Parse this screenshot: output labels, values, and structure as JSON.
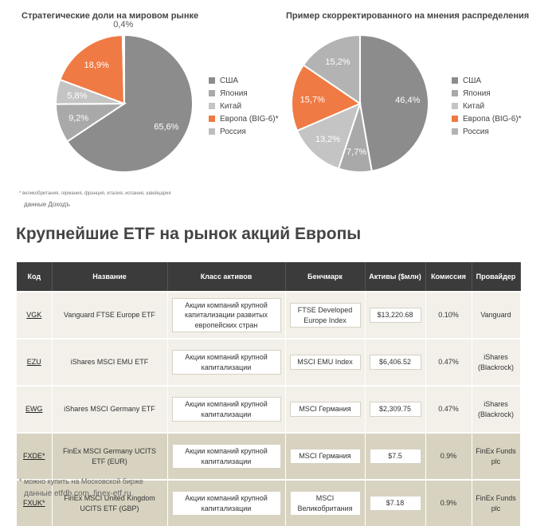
{
  "charts": [
    {
      "title": "Стратегические доли на мировом рынке",
      "slices": [
        {
          "name": "США",
          "label": "65,6%",
          "value": 65.6,
          "color": "#8c8c8c"
        },
        {
          "name": "Япония",
          "label": "9,2%",
          "value": 9.2,
          "color": "#a9a9a9"
        },
        {
          "name": "Китай",
          "label": "5,8%",
          "value": 5.8,
          "color": "#c4c4c4"
        },
        {
          "name": "Европа (BIG-6)*",
          "label": "18,9%",
          "value": 18.9,
          "color": "#f07a43"
        },
        {
          "name": "Россия",
          "label": "0,4%",
          "value": 0.4,
          "color": "#bdbdbd"
        }
      ]
    },
    {
      "title": "Пример скорректированного на мнения распределения",
      "slices": [
        {
          "name": "США",
          "label": "46,4%",
          "value": 46.4,
          "color": "#8c8c8c"
        },
        {
          "name": "Япония",
          "label": "7,7%",
          "value": 7.7,
          "color": "#a9a9a9"
        },
        {
          "name": "Китай",
          "label": "13,2%",
          "value": 13.2,
          "color": "#c4c4c4"
        },
        {
          "name": "Европа (BIG-6)*",
          "label": "15,7%",
          "value": 15.7,
          "color": "#f07a43"
        },
        {
          "name": "Россия",
          "label": "15,2%",
          "value": 15.2,
          "color": "#b3b3b3"
        }
      ]
    }
  ],
  "chart_data": [
    {
      "type": "pie",
      "title": "Стратегические доли на мировом рынке",
      "categories": [
        "США",
        "Япония",
        "Китай",
        "Европа (BIG-6)*",
        "Россия"
      ],
      "values": [
        65.6,
        9.2,
        5.8,
        18.9,
        0.4
      ],
      "legend": "right"
    },
    {
      "type": "pie",
      "title": "Пример скорректированного на мнения распределения",
      "categories": [
        "США",
        "Япония",
        "Китай",
        "Европа (BIG-6)*",
        "Россия"
      ],
      "values": [
        46.4,
        7.7,
        13.2,
        15.7,
        15.2
      ],
      "legend": "right"
    }
  ],
  "chart_footnote": "* великобритания, германия, франция, италия, испания, швейцария",
  "chart_source": "данные Доходъ",
  "heading": "Крупнейшие ETF на рынок акций Европы",
  "table": {
    "headers": [
      "Код",
      "Название",
      "Класс активов",
      "Бенчмарк",
      "Активы ($млн)",
      "Комиссия",
      "Провайдер"
    ],
    "rows": [
      {
        "code": "VGK",
        "name": "Vanguard FTSE Europe ETF",
        "asset_class": "Акции компаний крупной капитализации развитых европейских стран",
        "benchmark": "FTSE Developed Europe Index",
        "assets": "$13,220.68",
        "fee": "0.10%",
        "provider": "Vanguard",
        "highlight": false
      },
      {
        "code": "EZU",
        "name": "iShares MSCI EMU ETF",
        "asset_class": "Акции компаний крупной капитализации",
        "benchmark": "MSCI EMU Index",
        "assets": "$6,406.52",
        "fee": "0.47%",
        "provider": "iShares (Blackrock)",
        "highlight": false
      },
      {
        "code": "EWG",
        "name": "iShares MSCI Germany ETF",
        "asset_class": "Акции компаний крупной капитализации",
        "benchmark": "MSCI Германия",
        "assets": "$2,309.75",
        "fee": "0.47%",
        "provider": "iShares (Blackrock)",
        "highlight": false
      },
      {
        "code": "FXDE*",
        "name": "FinEx MSCI Germany UCITS ETF (EUR)",
        "asset_class": "Акции компаний крупной капитализации",
        "benchmark": "MSCI Германия",
        "assets": "$7.5",
        "fee": "0.9%",
        "provider": "FinEx Funds plc",
        "highlight": true
      },
      {
        "code": "FXUK*",
        "name": "FinEx MSCI United Kingdom UCITS ETF (GBP)",
        "asset_class": "Акции компаний крупной капитализации",
        "benchmark": "MSCI Великобритания",
        "assets": "$7.18",
        "fee": "0.9%",
        "provider": "FinEx Funds plc",
        "highlight": true
      }
    ]
  },
  "table_footnote": "* можно купить на Московской бирже",
  "table_source": "данные etfdb.com, finex-etf.ru"
}
